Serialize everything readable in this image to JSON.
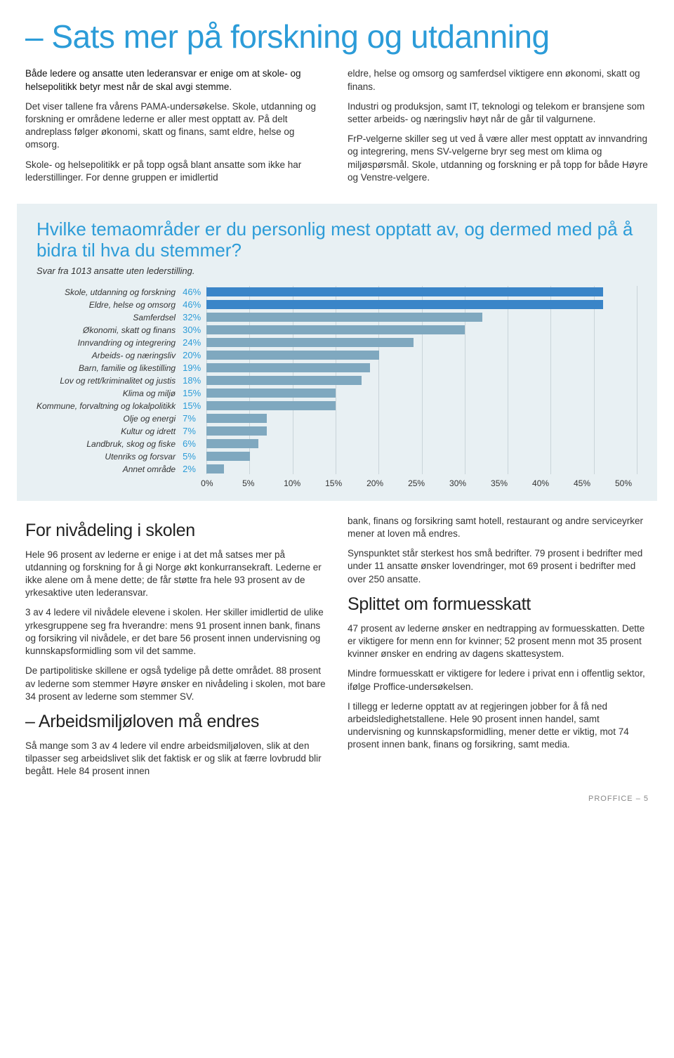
{
  "title": "– Sats mer på forskning og utdanning",
  "intro": {
    "left": {
      "p1_lead": "Både ledere og ansatte uten lederansvar er enige om at skole- og helsepolitikk betyr mest når de skal avgi stemme.",
      "p2": "Det viser tallene fra vårens PAMA-undersøkelse. Skole, utdanning og forskning er områdene lederne er aller mest opptatt av. På delt andreplass følger økonomi, skatt og finans, samt eldre, helse og omsorg.",
      "p3": "Skole- og helsepolitikk er på topp også blant ansatte som ikke har lederstillinger. For denne gruppen er imidlertid"
    },
    "right": {
      "p1": "eldre, helse og omsorg og samferdsel viktigere enn økonomi, skatt og finans.",
      "p2": "Industri og produksjon, samt IT, teknologi og telekom er bransjene som setter arbeids- og næringsliv høyt når de går til valgurnene.",
      "p3": "FrP-velgerne skiller seg ut ved å være aller mest opptatt av innvandring og integrering, mens SV-velgerne bryr seg mest om klima og miljøspørsmål. Skole, utdanning og forskning er på topp for både Høyre og Venstre-velgere."
    }
  },
  "chart": {
    "type": "bar-horizontal",
    "title": "Hvilke temaområder er du personlig mest opptatt av, og dermed med på å bidra til hva du stemmer?",
    "caption": "Svar fra 1013 ansatte uten lederstilling.",
    "xlim": [
      0,
      50
    ],
    "xtick_step": 5,
    "xticks": [
      "0%",
      "5%",
      "10%",
      "15%",
      "20%",
      "25%",
      "30%",
      "35%",
      "40%",
      "45%",
      "50%"
    ],
    "bar_color_highlight": "#3a85c8",
    "bar_color_normal": "#7fa8bf",
    "grid_color": "#c9d4d9",
    "background_color": "#e8f0f3",
    "label_fontsize": 12,
    "value_color": "#2c9cd8",
    "rows": [
      {
        "label": "Skole, utdanning og forskning",
        "value": 46,
        "display": "46%",
        "highlight": true
      },
      {
        "label": "Eldre, helse og omsorg",
        "value": 46,
        "display": "46%",
        "highlight": true
      },
      {
        "label": "Samferdsel",
        "value": 32,
        "display": "32%",
        "highlight": false
      },
      {
        "label": "Økonomi, skatt og finans",
        "value": 30,
        "display": "30%",
        "highlight": false
      },
      {
        "label": "Innvandring og integrering",
        "value": 24,
        "display": "24%",
        "highlight": false
      },
      {
        "label": "Arbeids- og næringsliv",
        "value": 20,
        "display": "20%",
        "highlight": false
      },
      {
        "label": "Barn, familie og likestilling",
        "value": 19,
        "display": "19%",
        "highlight": false
      },
      {
        "label": "Lov og rett/kriminalitet og justis",
        "value": 18,
        "display": "18%",
        "highlight": false
      },
      {
        "label": "Klima og miljø",
        "value": 15,
        "display": "15%",
        "highlight": false
      },
      {
        "label": "Kommune, forvaltning og lokalpolitikk",
        "value": 15,
        "display": "15%",
        "highlight": false
      },
      {
        "label": "Olje og energi",
        "value": 7,
        "display": "7%",
        "highlight": false
      },
      {
        "label": "Kultur og idrett",
        "value": 7,
        "display": "7%",
        "highlight": false
      },
      {
        "label": "Landbruk, skog og fiske",
        "value": 6,
        "display": "6%",
        "highlight": false
      },
      {
        "label": "Utenriks og forsvar",
        "value": 5,
        "display": "5%",
        "highlight": false
      },
      {
        "label": "Annet område",
        "value": 2,
        "display": "2%",
        "highlight": false
      }
    ]
  },
  "lower": {
    "left": {
      "h1": "For nivådeling i skolen",
      "p1": "Hele 96 prosent av lederne er enige i at det må satses mer på utdanning og forskning for å gi Norge økt konkurransekraft. Lederne er ikke alene om å mene dette; de får støtte fra hele 93 prosent av de yrkesaktive uten lederansvar.",
      "p2": "3 av 4 ledere vil nivådele elevene i skolen. Her skiller imidlertid de ulike yrkesgruppene seg fra hverandre: mens 91 prosent innen bank, finans og forsikring vil nivådele, er det bare 56 prosent innen undervisning og kunnskapsformidling som vil det samme.",
      "p3": "De partipolitiske skillene er også tydelige på dette området. 88 prosent av lederne som stemmer Høyre ønsker en nivådeling i skolen, mot bare 34 prosent av lederne som stemmer SV.",
      "h2": "– Arbeidsmiljøloven må endres",
      "p4": "Så mange som 3 av 4 ledere vil endre arbeidsmiljøloven, slik at den tilpasser seg arbeidslivet slik det faktisk er og slik at færre lovbrudd blir begått. Hele 84 prosent innen"
    },
    "right": {
      "p1": "bank, finans og forsikring samt hotell, restaurant og andre serviceyrker mener at loven må endres.",
      "p2": "Synspunktet står sterkest hos små bedrifter. 79 prosent i bedrifter med under 11 ansatte ønsker lovendringer, mot 69 prosent i bedrifter med over 250 ansatte.",
      "h1": "Splittet om formuesskatt",
      "p3": "47 prosent av lederne ønsker en nedtrapping av formuesskatten. Dette er viktigere for menn enn for kvinner; 52 prosent menn mot 35 prosent kvinner ønsker en endring av dagens skattesystem.",
      "p4": "Mindre formuesskatt er viktigere for ledere i privat enn i offentlig sektor, ifølge Proffice-undersøkelsen.",
      "p5": "I tillegg er lederne opptatt av at regjeringen jobber for å få ned arbeidsledighetstallene. Hele 90 prosent innen handel, samt undervisning og kunnskapsformidling, mener dette er viktig, mot 74 prosent innen bank, finans og forsikring, samt media."
    }
  },
  "footer": "PROFFICE – 5"
}
